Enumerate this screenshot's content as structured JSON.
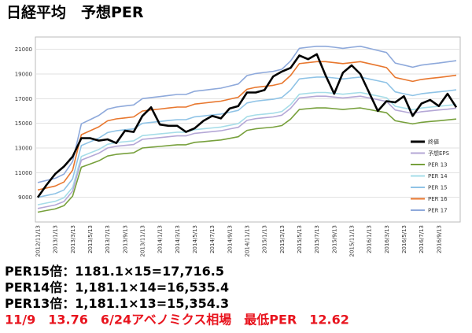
{
  "chart_data": {
    "type": "line",
    "title": "日経平均　予想PER",
    "categories": [
      "2012/11/13",
      null,
      "2013/1/13",
      null,
      "2013/3/13",
      null,
      "2013/5/13",
      null,
      "2013/7/13",
      null,
      "2013/9/13",
      null,
      "2013/11/13",
      null,
      "2014/1/13",
      null,
      "2014/3/13",
      null,
      "2014/5/13",
      null,
      "2014/7/13",
      null,
      "2014/9/13",
      null,
      "2014/11/13",
      null,
      "2015/1/13",
      null,
      "2015/3/13",
      null,
      "2015/5/13",
      null,
      "2015/7/13",
      null,
      "2015/9/13",
      null,
      "2015/11/13",
      null,
      "2016/1/13",
      null,
      "2016/3/13",
      null,
      "2016/5/13",
      null,
      "2016/7/13",
      null,
      "2016/9/13",
      null,
      null
    ],
    "ylim": [
      7000,
      22000
    ],
    "yticks": [
      9000,
      11000,
      13000,
      15000,
      17000,
      19000,
      21000
    ],
    "grid": true,
    "legend": "right",
    "series": [
      {
        "name": "終値",
        "color": "#000000",
        "values": [
          9000,
          10000,
          10900,
          11500,
          12300,
          13800,
          13800,
          13600,
          13700,
          13400,
          14400,
          14300,
          15600,
          16300,
          14900,
          14800,
          14800,
          14300,
          14600,
          15200,
          15600,
          15400,
          16200,
          16400,
          17500,
          17500,
          17700,
          18800,
          19200,
          19500,
          20500,
          20200,
          20600,
          18900,
          17400,
          19100,
          19700,
          19000,
          17500,
          16000,
          16800,
          16700,
          17200,
          15600,
          16600,
          16900,
          16400,
          17400,
          16300
        ]
      },
      {
        "name": "予想EPS",
        "color": "#b4a7d6",
        "values": [
          8100,
          8240,
          8380,
          8660,
          9500,
          12020,
          12300,
          12580,
          13000,
          13140,
          13210,
          13280,
          13700,
          13770,
          13840,
          13910,
          13980,
          13980,
          14190,
          14260,
          14330,
          14400,
          14540,
          14680,
          15240,
          15380,
          15450,
          15520,
          15660,
          16220,
          17060,
          17130,
          17200,
          17200,
          17130,
          17060,
          17130,
          17200,
          17060,
          16920,
          16780,
          16080,
          15940,
          15800,
          15940,
          16010,
          16080,
          16150,
          16230
        ]
      },
      {
        "name": "PER 13",
        "color": "#77a03c",
        "values": [
          7800,
          7930,
          8060,
          8320,
          9100,
          11440,
          11700,
          11960,
          12350,
          12480,
          12550,
          12610,
          13000,
          13070,
          13130,
          13200,
          13260,
          13260,
          13460,
          13520,
          13590,
          13650,
          13780,
          13910,
          14430,
          14560,
          14630,
          14690,
          14820,
          15340,
          16120,
          16190,
          16250,
          16250,
          16190,
          16120,
          16190,
          16250,
          16120,
          15990,
          15860,
          15210,
          15080,
          14950,
          15080,
          15150,
          15210,
          15280,
          15350
        ]
      },
      {
        "name": "PER 14",
        "color": "#a6dde8",
        "values": [
          8400,
          8540,
          8680,
          8960,
          9800,
          12320,
          12600,
          12880,
          13300,
          13440,
          13510,
          13580,
          14000,
          14070,
          14140,
          14210,
          14280,
          14280,
          14490,
          14560,
          14630,
          14700,
          14840,
          14980,
          15540,
          15680,
          15750,
          15820,
          15960,
          16520,
          17360,
          17430,
          17500,
          17500,
          17430,
          17360,
          17430,
          17500,
          17360,
          17220,
          17080,
          16380,
          16240,
          16100,
          16240,
          16310,
          16380,
          16450,
          16530
        ]
      },
      {
        "name": "PER 15",
        "color": "#8fc3e6",
        "values": [
          9000,
          9150,
          9300,
          9600,
          10500,
          13200,
          13500,
          13800,
          14250,
          14400,
          14480,
          14550,
          15000,
          15080,
          15150,
          15230,
          15300,
          15300,
          15530,
          15600,
          15680,
          15750,
          15900,
          16050,
          16650,
          16800,
          16880,
          16950,
          17100,
          17700,
          18600,
          18680,
          18750,
          18750,
          18680,
          18600,
          18680,
          18750,
          18600,
          18450,
          18300,
          17550,
          17400,
          17250,
          17400,
          17480,
          17550,
          17630,
          17720
        ]
      },
      {
        "name": "PER 16",
        "color": "#e8772e",
        "values": [
          9600,
          9760,
          9920,
          10240,
          11200,
          14080,
          14400,
          14720,
          15200,
          15360,
          15440,
          15520,
          16000,
          16080,
          16160,
          16240,
          16320,
          16320,
          16560,
          16640,
          16720,
          16800,
          16960,
          17120,
          17760,
          17920,
          18000,
          18080,
          18240,
          18880,
          19840,
          19920,
          20000,
          20000,
          19920,
          19840,
          19920,
          20000,
          19840,
          19680,
          19520,
          18720,
          18560,
          18400,
          18560,
          18640,
          18720,
          18800,
          18900
        ]
      },
      {
        "name": "PER 17",
        "color": "#8ea9db",
        "values": [
          10200,
          10370,
          10540,
          10880,
          11900,
          14960,
          15300,
          15640,
          16150,
          16320,
          16410,
          16490,
          17000,
          17090,
          17170,
          17260,
          17340,
          17340,
          17600,
          17680,
          17770,
          17850,
          18020,
          18190,
          18870,
          19040,
          19130,
          19210,
          19380,
          20060,
          21080,
          21170,
          21250,
          21250,
          21170,
          21080,
          21170,
          21250,
          21080,
          20910,
          20740,
          19890,
          19720,
          19550,
          19720,
          19810,
          19890,
          19980,
          20080
        ]
      }
    ]
  },
  "notes": [
    {
      "text": "PER15倍：1181.1×15=17,716.5",
      "color": "#000000"
    },
    {
      "text": "PER14倍：1,181.1×14=16,535.4",
      "color": "#000000"
    },
    {
      "text": "PER13倍：1,181.1×13=15,354.3",
      "color": "#000000"
    },
    {
      "text": "11/9　13.76　6/24アベノミクス相場　最低PER　12.62",
      "color": "#e8141e"
    }
  ]
}
